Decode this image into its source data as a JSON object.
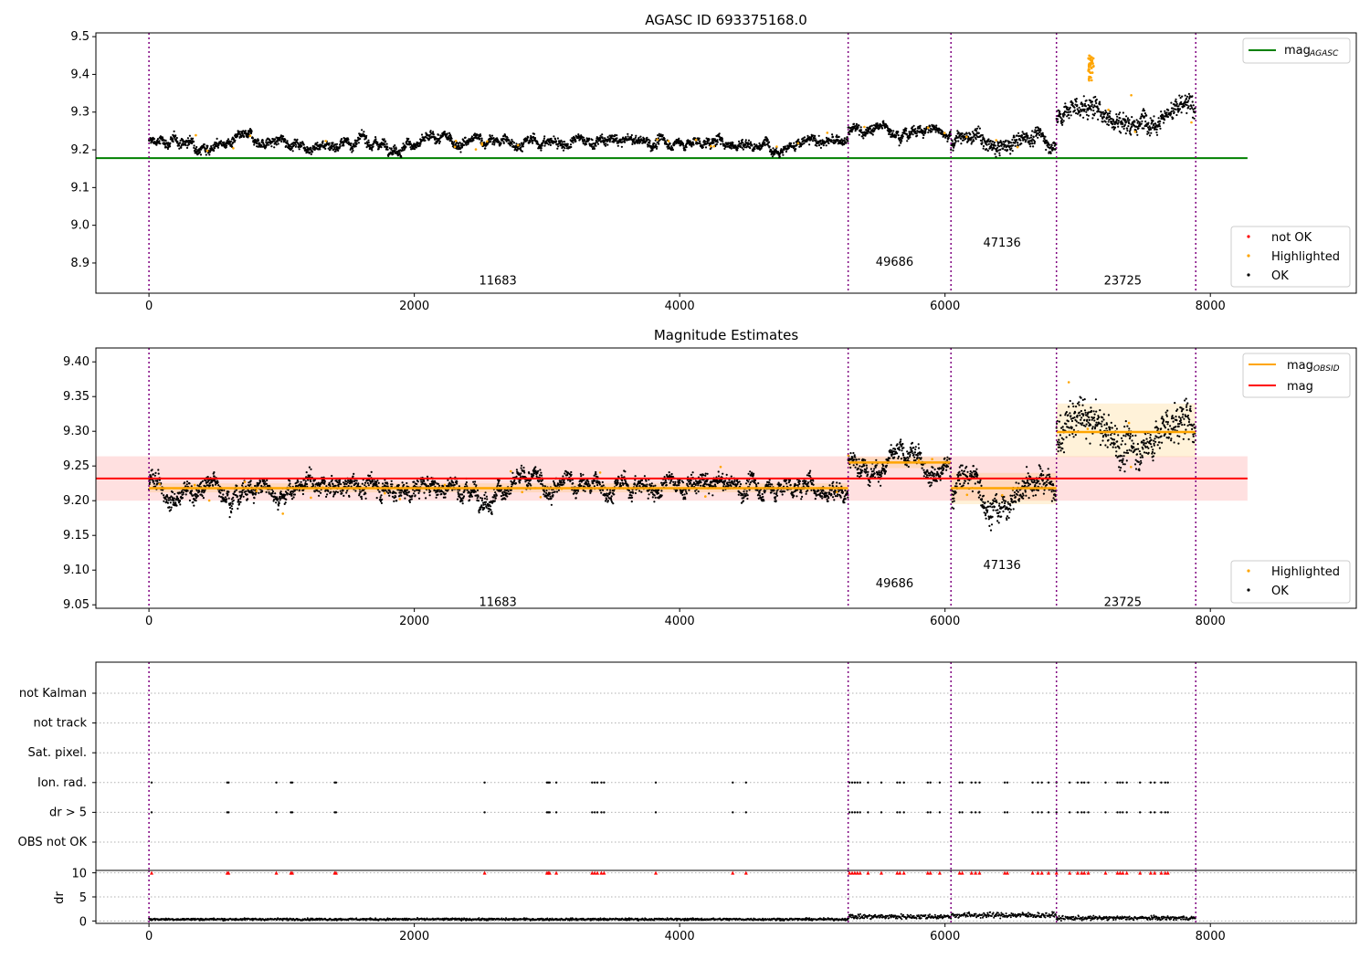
{
  "chart_data": [
    {
      "type": "scatter",
      "title": "AGASC ID 693375168.0",
      "xlim": [
        -400,
        9100
      ],
      "ylim": [
        8.82,
        9.51
      ],
      "xticks": [
        "0",
        "2000",
        "4000",
        "6000",
        "8000"
      ],
      "yticks": [
        "8.9",
        "9.0",
        "9.1",
        "9.2",
        "9.3",
        "9.4",
        "9.5"
      ],
      "obs_boundaries": [
        0,
        5270,
        6045,
        6840,
        7890
      ],
      "obs_labels": [
        {
          "text": "11683",
          "x": 2630,
          "y": 8.855
        },
        {
          "text": "49686",
          "x": 5620,
          "y": 8.905
        },
        {
          "text": "47136",
          "x": 6430,
          "y": 8.955
        },
        {
          "text": "23725",
          "x": 7340,
          "y": 8.855
        }
      ],
      "reference_line": {
        "name_main": "mag",
        "name_sub": "AGASC",
        "value": 9.178,
        "color": "#008000",
        "x_range": [
          -400,
          8280
        ]
      },
      "segments": [
        {
          "x_range": [
            0,
            5270
          ],
          "mean": 9.22,
          "spread": 0.012
        },
        {
          "x_range": [
            5270,
            6045
          ],
          "mean": 9.255,
          "spread": 0.012
        },
        {
          "x_range": [
            6045,
            6840
          ],
          "mean": 9.215,
          "spread": 0.02
        },
        {
          "x_range": [
            6840,
            7890
          ],
          "mean": 9.295,
          "spread": 0.03
        }
      ],
      "legend": {
        "lines": [
          {
            "main": "mag",
            "sub": "AGASC",
            "color": "#008000"
          }
        ],
        "markers": [
          {
            "label": "not OK",
            "color": "#ff0000"
          },
          {
            "label": "Highlighted",
            "color": "#ffa500"
          },
          {
            "label": "OK",
            "color": "#000000"
          }
        ]
      }
    },
    {
      "type": "scatter",
      "title": "Magnitude Estimates",
      "xlim": [
        -400,
        9100
      ],
      "ylim": [
        9.045,
        9.42
      ],
      "xticks": [
        "0",
        "2000",
        "4000",
        "6000",
        "8000"
      ],
      "yticks": [
        "9.05",
        "9.10",
        "9.15",
        "9.20",
        "9.25",
        "9.30",
        "9.35",
        "9.40"
      ],
      "obs_boundaries": [
        0,
        5270,
        6045,
        6840,
        7890
      ],
      "obs_labels": [
        {
          "text": "11683",
          "x": 2630,
          "y": 9.055
        },
        {
          "text": "49686",
          "x": 5620,
          "y": 9.082
        },
        {
          "text": "47136",
          "x": 6430,
          "y": 9.108
        },
        {
          "text": "23725",
          "x": 7340,
          "y": 9.055
        }
      ],
      "mag_line": {
        "name": "mag",
        "value": 9.232,
        "band": [
          9.2,
          9.264
        ],
        "color": "#ff0000",
        "x_range": [
          -400,
          8280
        ]
      },
      "obsid_mags": [
        {
          "x_range": [
            0,
            5270
          ],
          "value": 9.218,
          "band": [
            9.212,
            9.225
          ]
        },
        {
          "x_range": [
            5270,
            6045
          ],
          "value": 9.255,
          "band": [
            9.247,
            9.263
          ]
        },
        {
          "x_range": [
            6045,
            6840
          ],
          "value": 9.218,
          "band": [
            9.195,
            9.24
          ]
        },
        {
          "x_range": [
            6840,
            7890
          ],
          "value": 9.299,
          "band": [
            9.263,
            9.34
          ]
        }
      ],
      "legend": {
        "lines": [
          {
            "main": "mag",
            "sub": "OBSID",
            "color": "#ffa500"
          },
          {
            "main": "mag",
            "sub": "",
            "color": "#ff0000"
          }
        ],
        "markers": [
          {
            "label": "Highlighted",
            "color": "#ffa500"
          },
          {
            "label": "OK",
            "color": "#000000"
          }
        ]
      }
    },
    {
      "type": "scatter",
      "title": "",
      "xlim": [
        -400,
        9100
      ],
      "categories": [
        "not Kalman",
        "not track",
        "Sat. pixel.",
        "Ion. rad.",
        "dr > 5",
        "OBS not OK"
      ],
      "flag_rows": [
        "Ion. rad.",
        "dr > 5"
      ],
      "flag_times": [
        20,
        590,
        600,
        960,
        1070,
        1080,
        1400,
        1410,
        2530,
        3000,
        3010,
        3020,
        3070,
        3340,
        3360,
        3380,
        3410,
        3430,
        3820,
        4400,
        4500,
        5280,
        5300,
        5320,
        5340,
        5360,
        5420,
        5520,
        5640,
        5660,
        5690,
        5870,
        5890,
        5960,
        6110,
        6130,
        6200,
        6230,
        6260,
        6450,
        6470,
        6660,
        6700,
        6730,
        6780,
        6840,
        6940,
        7000,
        7030,
        7050,
        7080,
        7210,
        7300,
        7320,
        7340,
        7370,
        7470,
        7550,
        7580,
        7630,
        7660,
        7680
      ],
      "obs_boundaries": [
        0,
        5270,
        6045,
        6840,
        7890
      ],
      "xticks": [
        "0",
        "2000",
        "4000",
        "6000",
        "8000"
      ]
    },
    {
      "type": "scatter",
      "title": "",
      "ylabel": "dr",
      "xlim": [
        -400,
        9100
      ],
      "ylim": [
        -0.5,
        10.5
      ],
      "yticks": [
        "0",
        "5",
        "10"
      ],
      "xticks": [
        "0",
        "2000",
        "4000",
        "6000",
        "8000"
      ],
      "dr_segments": [
        {
          "x_range": [
            0,
            5270
          ],
          "mean": 0.35,
          "spread": 0.15
        },
        {
          "x_range": [
            5270,
            6045
          ],
          "mean": 0.9,
          "spread": 0.35
        },
        {
          "x_range": [
            6045,
            6840
          ],
          "mean": 1.2,
          "spread": 0.4
        },
        {
          "x_range": [
            6840,
            7890
          ],
          "mean": 0.6,
          "spread": 0.3
        }
      ],
      "obs_boundaries": [
        0,
        5270,
        6045,
        6840,
        7890
      ]
    }
  ],
  "colors": {
    "ok": "#000000",
    "highlighted": "#ffa500",
    "not_ok": "#ff0000",
    "boundary": "#800080",
    "grid": "#b0b0b0"
  }
}
